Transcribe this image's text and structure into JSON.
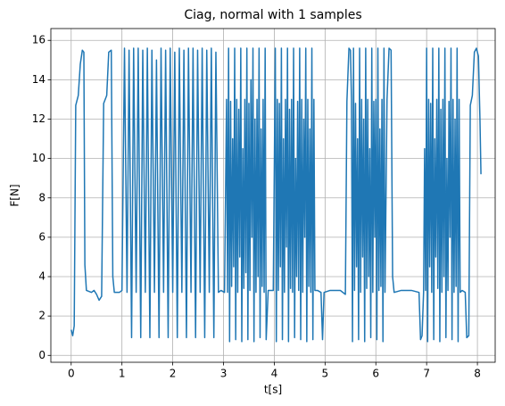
{
  "chart_data": {
    "type": "line",
    "title": "Ciag, normal with 1 samples",
    "xlabel": "t[s]",
    "ylabel": "F[N]",
    "x": [
      0,
      0.03,
      0.06,
      0.09,
      0.14,
      0.18,
      0.22,
      0.25,
      0.27,
      0.3,
      0.4,
      0.45,
      0.5,
      0.55,
      0.6,
      0.64,
      0.7,
      0.74,
      0.79,
      0.82,
      0.85,
      0.95,
      1.0,
      1.05,
      1.1,
      1.14,
      1.19,
      1.23,
      1.28,
      1.32,
      1.37,
      1.41,
      1.46,
      1.5,
      1.55,
      1.59,
      1.64,
      1.68,
      1.73,
      1.77,
      1.82,
      1.86,
      1.91,
      1.95,
      2.0,
      2.04,
      2.09,
      2.13,
      2.18,
      2.22,
      2.27,
      2.31,
      2.36,
      2.4,
      2.45,
      2.49,
      2.54,
      2.58,
      2.63,
      2.67,
      2.72,
      2.76,
      2.81,
      2.85,
      2.9,
      2.95,
      3.02,
      3.06,
      3.08,
      3.1,
      3.12,
      3.14,
      3.16,
      3.18,
      3.2,
      3.22,
      3.24,
      3.26,
      3.28,
      3.3,
      3.32,
      3.34,
      3.36,
      3.38,
      3.4,
      3.42,
      3.44,
      3.46,
      3.48,
      3.5,
      3.52,
      3.54,
      3.56,
      3.58,
      3.6,
      3.62,
      3.64,
      3.66,
      3.68,
      3.7,
      3.72,
      3.74,
      3.76,
      3.78,
      3.8,
      3.82,
      3.84,
      3.88,
      3.98,
      4.02,
      4.04,
      4.06,
      4.08,
      4.1,
      4.12,
      4.14,
      4.16,
      4.18,
      4.2,
      4.22,
      4.24,
      4.26,
      4.28,
      4.3,
      4.32,
      4.34,
      4.36,
      4.38,
      4.4,
      4.42,
      4.44,
      4.46,
      4.48,
      4.5,
      4.52,
      4.54,
      4.56,
      4.58,
      4.6,
      4.62,
      4.64,
      4.66,
      4.68,
      4.7,
      4.72,
      4.74,
      4.76,
      4.78,
      4.8,
      4.85,
      4.92,
      4.95,
      4.98,
      5.1,
      5.3,
      5.4,
      5.43,
      5.47,
      5.5,
      5.52,
      5.54,
      5.56,
      5.58,
      5.6,
      5.62,
      5.64,
      5.66,
      5.68,
      5.7,
      5.72,
      5.74,
      5.76,
      5.78,
      5.8,
      5.82,
      5.84,
      5.86,
      5.88,
      5.9,
      5.92,
      5.94,
      5.96,
      5.98,
      6.0,
      6.02,
      6.04,
      6.06,
      6.08,
      6.1,
      6.12,
      6.14,
      6.16,
      6.18,
      6.22,
      6.26,
      6.3,
      6.33,
      6.36,
      6.5,
      6.7,
      6.85,
      6.88,
      6.91,
      6.94,
      6.96,
      6.98,
      7.0,
      7.02,
      7.04,
      7.06,
      7.08,
      7.1,
      7.12,
      7.14,
      7.16,
      7.18,
      7.2,
      7.22,
      7.24,
      7.26,
      7.28,
      7.3,
      7.32,
      7.34,
      7.36,
      7.38,
      7.4,
      7.42,
      7.44,
      7.46,
      7.48,
      7.5,
      7.52,
      7.54,
      7.56,
      7.58,
      7.6,
      7.62,
      7.64,
      7.66,
      7.7,
      7.76,
      7.79,
      7.83,
      7.86,
      7.9,
      7.94,
      7.98,
      8.02,
      8.05,
      8.07
    ],
    "values": [
      1.3,
      1.0,
      1.5,
      12.7,
      13.2,
      14.8,
      15.5,
      15.4,
      4.6,
      3.3,
      3.2,
      3.3,
      3.1,
      2.8,
      3.0,
      12.8,
      13.2,
      15.4,
      15.5,
      4.0,
      3.2,
      3.2,
      3.3,
      15.6,
      3.2,
      15.5,
      0.9,
      15.6,
      3.2,
      15.6,
      0.9,
      15.5,
      3.2,
      15.6,
      0.9,
      15.5,
      3.2,
      15.0,
      0.9,
      15.6,
      3.2,
      15.5,
      0.9,
      15.6,
      3.2,
      15.4,
      0.9,
      15.6,
      3.2,
      15.5,
      0.9,
      15.6,
      3.2,
      15.6,
      0.9,
      15.5,
      3.2,
      15.6,
      0.9,
      15.5,
      3.2,
      15.6,
      0.9,
      15.4,
      3.2,
      3.3,
      3.2,
      13.0,
      3.2,
      15.6,
      0.7,
      12.9,
      3.5,
      11.0,
      4.5,
      15.6,
      0.8,
      13.0,
      3.2,
      12.5,
      5.0,
      15.6,
      0.7,
      10.5,
      3.4,
      13.0,
      4.2,
      15.6,
      0.8,
      12.8,
      3.3,
      14.0,
      6.0,
      15.6,
      0.7,
      12.0,
      3.2,
      13.0,
      4.0,
      15.6,
      0.9,
      11.5,
      3.5,
      13.0,
      3.2,
      15.6,
      0.8,
      3.3,
      3.3,
      15.6,
      0.7,
      13.0,
      3.3,
      12.8,
      4.5,
      15.6,
      0.8,
      11.0,
      3.2,
      13.0,
      5.5,
      15.6,
      0.7,
      12.5,
      3.4,
      13.0,
      3.2,
      15.6,
      0.9,
      10.0,
      4.0,
      12.9,
      3.3,
      15.6,
      0.8,
      13.0,
      3.2,
      12.0,
      6.0,
      15.6,
      0.7,
      13.0,
      3.5,
      11.5,
      3.2,
      15.6,
      0.8,
      13.0,
      3.3,
      3.3,
      3.2,
      0.8,
      3.2,
      3.3,
      3.3,
      3.1,
      12.9,
      15.6,
      15.5,
      13.0,
      0.7,
      15.6,
      3.3,
      12.8,
      4.5,
      11.0,
      0.8,
      15.6,
      3.2,
      13.0,
      5.0,
      12.0,
      0.7,
      15.6,
      3.4,
      13.0,
      4.0,
      10.5,
      0.9,
      15.6,
      3.2,
      12.9,
      6.0,
      13.0,
      0.8,
      15.6,
      3.3,
      11.5,
      3.5,
      13.0,
      0.7,
      15.6,
      3.2,
      13.0,
      15.6,
      15.5,
      4.0,
      3.2,
      3.3,
      3.3,
      3.2,
      0.8,
      1.0,
      3.2,
      10.5,
      3.3,
      15.6,
      0.7,
      13.0,
      4.5,
      12.8,
      3.2,
      15.6,
      0.8,
      11.0,
      5.0,
      13.0,
      3.4,
      15.6,
      0.7,
      12.5,
      3.2,
      13.0,
      4.0,
      15.6,
      0.9,
      10.0,
      3.3,
      12.9,
      6.0,
      15.6,
      0.8,
      13.0,
      3.2,
      12.0,
      3.5,
      15.6,
      0.7,
      13.0,
      3.2,
      3.3,
      3.2,
      0.9,
      1.0,
      12.7,
      13.2,
      15.4,
      15.6,
      15.2,
      12.0,
      9.2
    ],
    "color": "#1f77b4",
    "xlim": [
      -0.4,
      8.35
    ],
    "xticks": [
      0,
      1,
      2,
      3,
      4,
      5,
      6,
      7,
      8
    ],
    "ylim": [
      -0.35,
      16.6
    ],
    "yticks": [
      0,
      2,
      4,
      6,
      8,
      10,
      12,
      14,
      16
    ],
    "grid": true
  }
}
